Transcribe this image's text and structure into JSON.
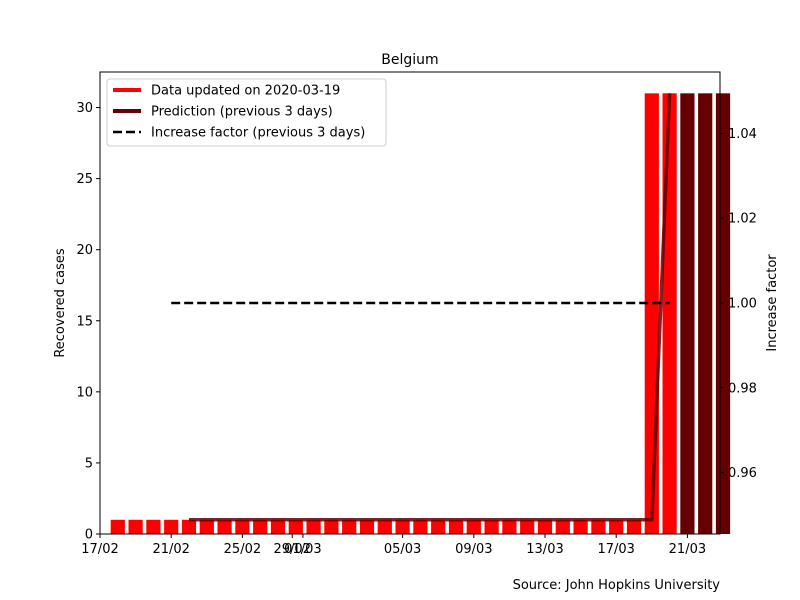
{
  "chart_data": {
    "type": "bar",
    "title": "Belgium",
    "xlabel": "",
    "ylabel": "Recovered cases",
    "y2label": "Increase factor",
    "ylim": [
      0,
      32.5
    ],
    "y2lim": [
      0.9455,
      1.0545
    ],
    "yticks": [
      0,
      5,
      10,
      15,
      20,
      25,
      30
    ],
    "y2ticks": [
      "0.96",
      "0.98",
      "1.00",
      "1.02",
      "1.04"
    ],
    "xtick_labels": [
      "17/02",
      "21/02",
      "25/02",
      "29/02",
      "01/03",
      "05/03",
      "09/03",
      "13/03",
      "17/03",
      "21/03"
    ],
    "source": "Source: John Hopkins University",
    "colors": {
      "data": "#ff0000",
      "prediction": "#660000",
      "factor": "#000000"
    },
    "legend": {
      "placement": "upper-left",
      "entries": [
        "Data updated on 2020-03-19",
        "Prediction (previous 3 days)",
        "Increase factor (previous 3 days)"
      ]
    },
    "series": [
      {
        "name": "Data updated on 2020-03-19",
        "style": "bar",
        "x": [
          "2020-02-17",
          "2020-02-18",
          "2020-02-19",
          "2020-02-20",
          "2020-02-21",
          "2020-02-22",
          "2020-02-23",
          "2020-02-24",
          "2020-02-25",
          "2020-02-26",
          "2020-02-27",
          "2020-02-28",
          "2020-02-29",
          "2020-03-01",
          "2020-03-02",
          "2020-03-03",
          "2020-03-04",
          "2020-03-05",
          "2020-03-06",
          "2020-03-07",
          "2020-03-08",
          "2020-03-09",
          "2020-03-10",
          "2020-03-11",
          "2020-03-12",
          "2020-03-13",
          "2020-03-14",
          "2020-03-15",
          "2020-03-16",
          "2020-03-17",
          "2020-03-18",
          "2020-03-19"
        ],
        "values": [
          1,
          1,
          1,
          1,
          1,
          1,
          1,
          1,
          1,
          1,
          1,
          1,
          1,
          1,
          1,
          1,
          1,
          1,
          1,
          1,
          1,
          1,
          1,
          1,
          1,
          1,
          1,
          1,
          1,
          1,
          31,
          31
        ]
      },
      {
        "name": "Prediction (previous 3 days)",
        "style": "bar",
        "x": [
          "2020-03-20",
          "2020-03-21",
          "2020-03-22"
        ],
        "values": [
          31,
          31,
          31
        ]
      },
      {
        "name": "Prediction (previous 3 days)",
        "style": "line",
        "x": [
          "2020-02-21",
          "2020-03-18",
          "2020-03-19"
        ],
        "values": [
          1,
          1,
          31
        ]
      },
      {
        "name": "Increase factor (previous 3 days)",
        "style": "dashed-line",
        "axis": "right",
        "x": [
          "2020-02-20",
          "2020-03-19"
        ],
        "values": [
          1.0,
          1.0
        ]
      }
    ]
  }
}
